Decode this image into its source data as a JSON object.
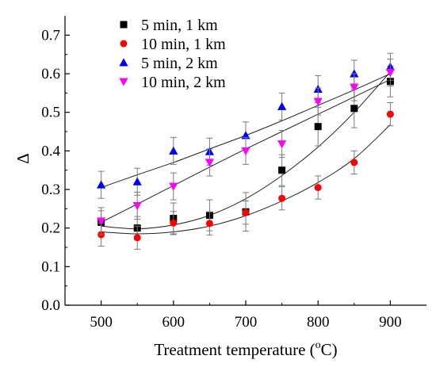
{
  "chart_data": {
    "type": "scatter",
    "title": "",
    "xlabel": "Treatment temperature (",
    "xlabel_superscript": "o",
    "xlabel_suffix": "C)",
    "ylabel": "Δ",
    "xlim": [
      450,
      950
    ],
    "ylim": [
      0.0,
      0.75
    ],
    "x_ticks": [
      "500",
      "600",
      "700",
      "800",
      "900"
    ],
    "y_ticks": [
      "0.0",
      "0.1",
      "0.2",
      "0.3",
      "0.4",
      "0.5",
      "0.6",
      "0.7"
    ],
    "grid": false,
    "legend_position": "top-left",
    "x": [
      500,
      550,
      600,
      650,
      700,
      750,
      800,
      850,
      900
    ],
    "series": [
      {
        "name": "5 min, 1 km",
        "marker": "square",
        "color": "#000000",
        "values": [
          0.215,
          0.2,
          0.225,
          0.233,
          0.242,
          0.35,
          0.463,
          0.51,
          0.58
        ],
        "errors": [
          0.03,
          0.03,
          0.04,
          0.04,
          0.05,
          0.04,
          0.05,
          0.05,
          0.04
        ],
        "fit": [
          0.205,
          0.198,
          0.208,
          0.233,
          0.276,
          0.336,
          0.41,
          0.5,
          0.605
        ]
      },
      {
        "name": "10 min, 1 km",
        "marker": "circle",
        "color": "#ff0000",
        "values": [
          0.183,
          0.175,
          0.213,
          0.212,
          0.24,
          0.277,
          0.305,
          0.37,
          0.495
        ],
        "errors": [
          0.03,
          0.03,
          0.03,
          0.03,
          0.03,
          0.03,
          0.03,
          0.03,
          0.03
        ],
        "fit": [
          0.19,
          0.185,
          0.19,
          0.205,
          0.232,
          0.27,
          0.318,
          0.38,
          0.468
        ]
      },
      {
        "name": "5 min, 2 km",
        "marker": "triangle-up",
        "color": "#0000ff",
        "values": [
          0.312,
          0.32,
          0.4,
          0.398,
          0.44,
          0.515,
          0.56,
          0.6,
          0.618
        ],
        "errors": [
          0.035,
          0.035,
          0.035,
          0.035,
          0.035,
          0.035,
          0.035,
          0.035,
          0.035
        ],
        "fit": [
          0.305,
          0.338,
          0.37,
          0.405,
          0.44,
          0.478,
          0.518,
          0.558,
          0.6
        ]
      },
      {
        "name": "10 min, 2 km",
        "marker": "triangle-down",
        "color": "#ff00ff",
        "values": [
          0.218,
          0.258,
          0.308,
          0.37,
          0.4,
          0.418,
          0.528,
          0.565,
          0.603
        ],
        "errors": [
          0.035,
          0.035,
          0.035,
          0.035,
          0.035,
          0.035,
          0.035,
          0.035,
          0.035
        ],
        "fit": [
          0.215,
          0.262,
          0.31,
          0.358,
          0.405,
          0.45,
          0.495,
          0.54,
          0.585
        ]
      }
    ]
  }
}
